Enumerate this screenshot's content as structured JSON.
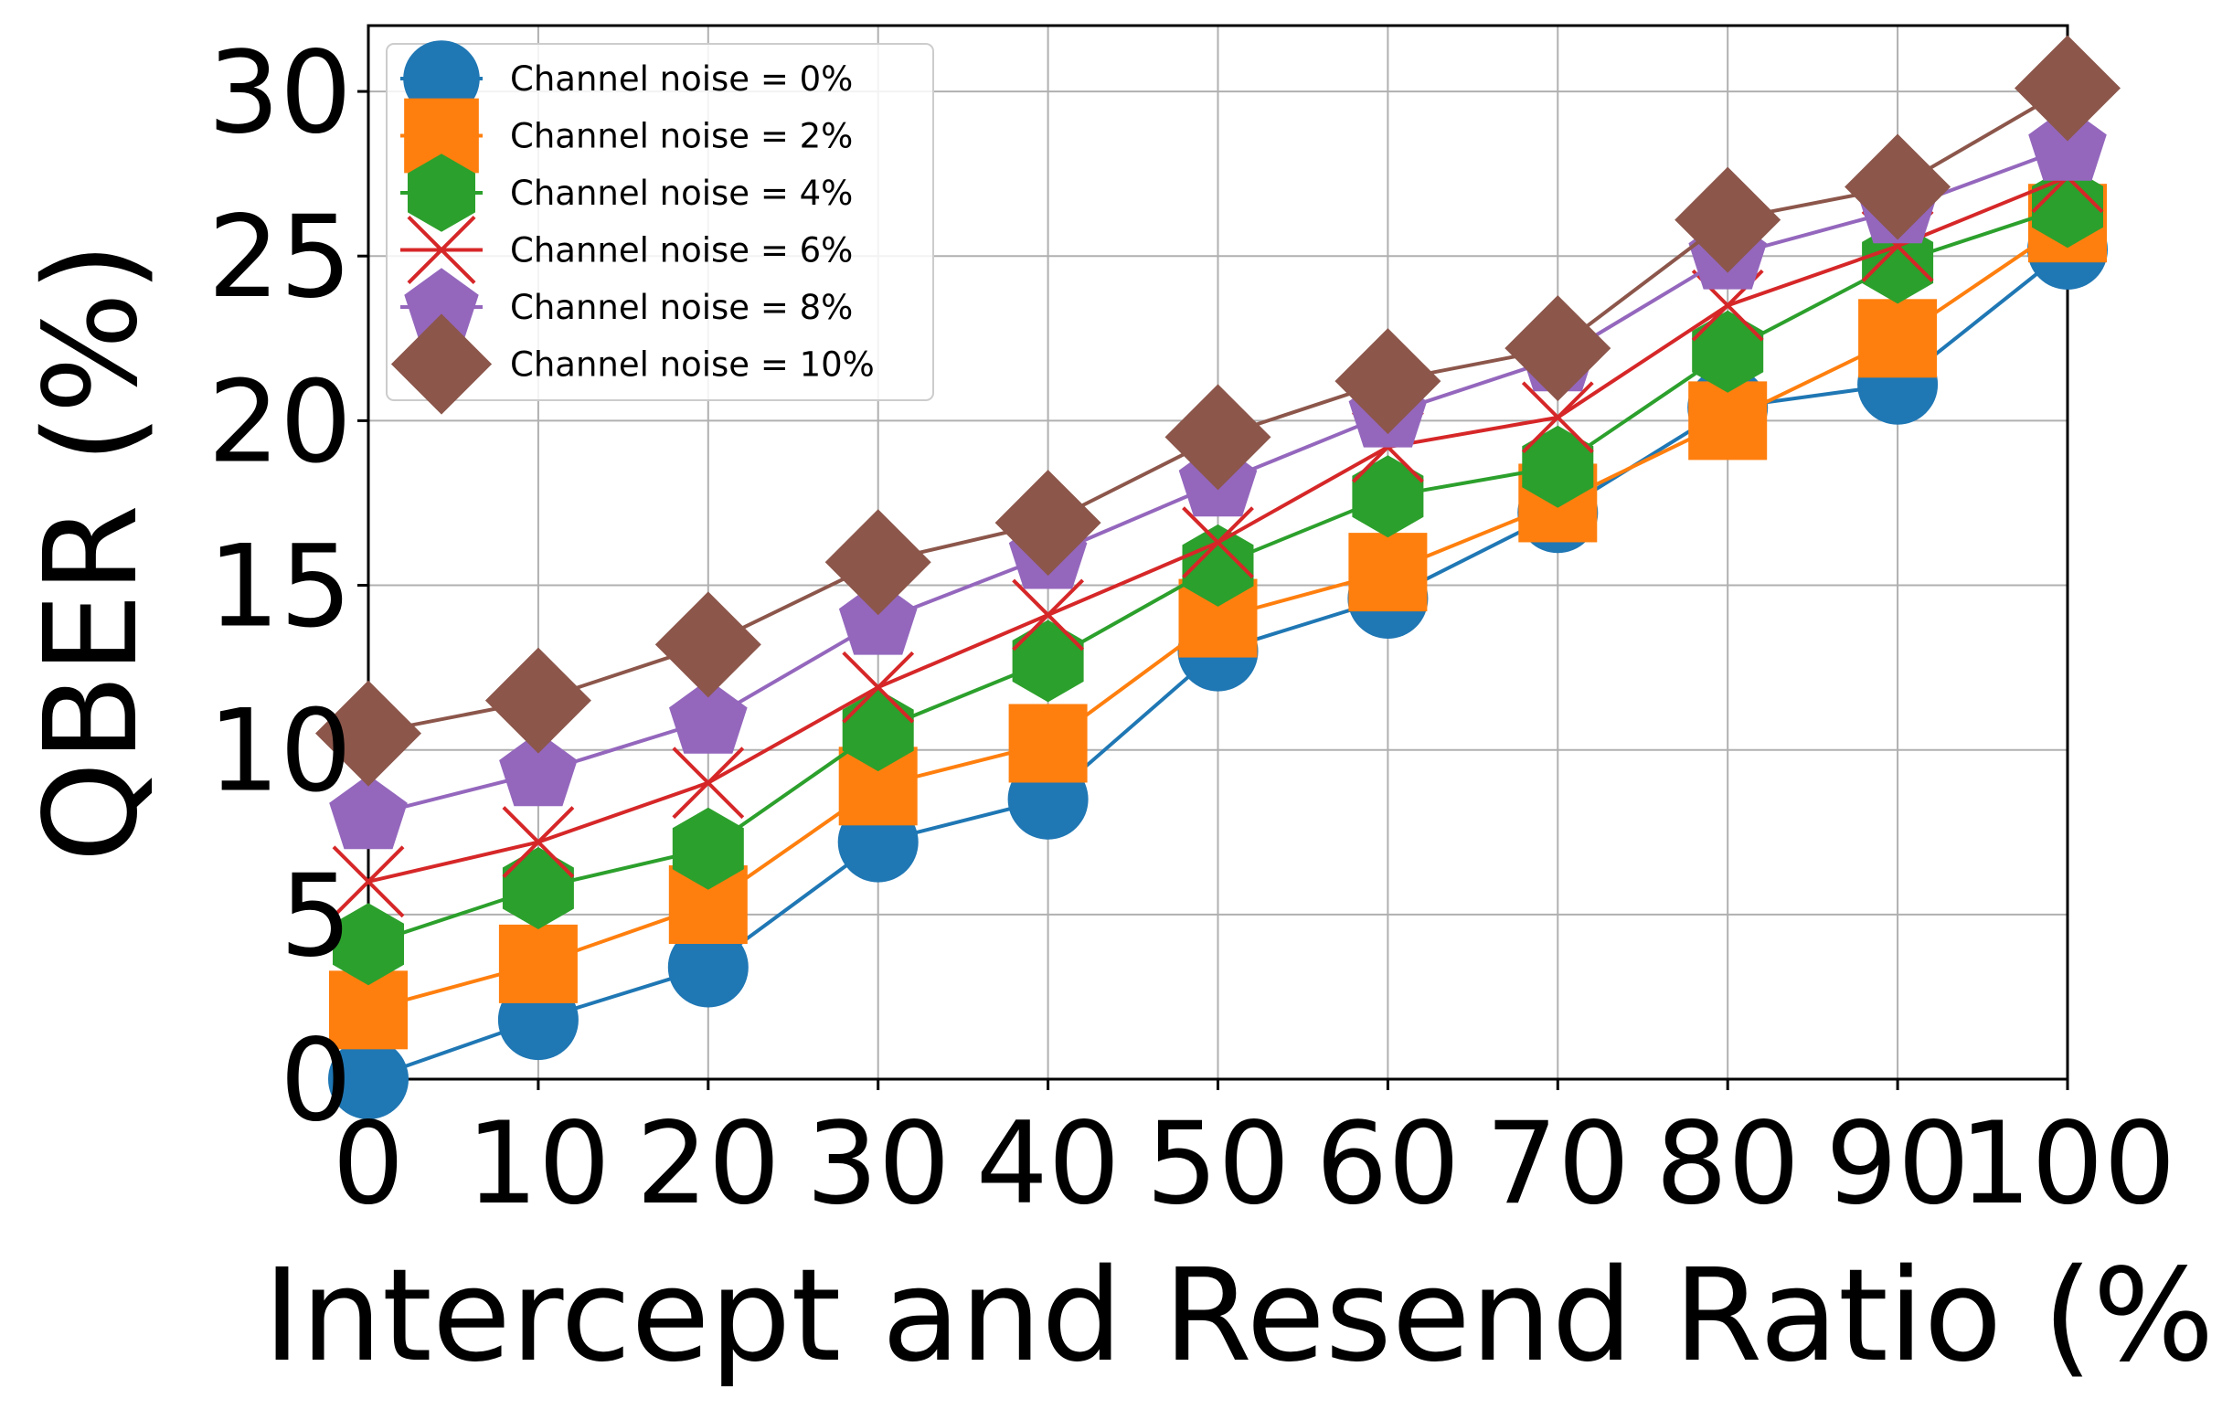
{
  "chart_data": {
    "type": "line",
    "title": "",
    "xlabel": "Intercept and Resend Ratio (%)",
    "ylabel": "QBER (%)",
    "x": [
      0,
      10,
      20,
      30,
      40,
      50,
      60,
      70,
      80,
      90,
      100
    ],
    "xlim": [
      0,
      100
    ],
    "ylim": [
      0,
      32
    ],
    "xticks": [
      0,
      10,
      20,
      30,
      40,
      50,
      60,
      70,
      80,
      90,
      100
    ],
    "yticks": [
      0,
      5,
      10,
      15,
      20,
      25,
      30
    ],
    "grid": true,
    "legend_position": "top-left",
    "series": [
      {
        "name": "Channel noise = 0%",
        "color": "#1f77b4",
        "marker": "circle",
        "values": [
          0,
          1.8,
          3.4,
          7.2,
          8.5,
          13.0,
          14.6,
          17.2,
          20.4,
          21.1,
          25.2
        ]
      },
      {
        "name": "Channel noise = 2%",
        "color": "#ff7f0e",
        "marker": "square",
        "values": [
          2.1,
          3.5,
          5.3,
          8.9,
          10.2,
          14.0,
          15.4,
          17.5,
          20.0,
          22.5,
          26.0
        ]
      },
      {
        "name": "Channel noise = 4%",
        "color": "#2ca02c",
        "marker": "hexagon",
        "values": [
          4.1,
          5.8,
          7.0,
          10.6,
          12.7,
          15.6,
          17.7,
          18.6,
          22.1,
          24.8,
          26.5
        ]
      },
      {
        "name": "Channel noise = 6%",
        "color": "#d62728",
        "marker": "x",
        "values": [
          6.0,
          7.2,
          9.0,
          11.9,
          14.1,
          16.3,
          19.2,
          20.1,
          23.5,
          25.3,
          27.4
        ]
      },
      {
        "name": "Channel noise = 8%",
        "color": "#9467bd",
        "marker": "pentagon",
        "values": [
          8.0,
          9.3,
          10.9,
          13.9,
          15.9,
          18.1,
          20.2,
          21.9,
          25.0,
          26.4,
          28.3
        ]
      },
      {
        "name": "Channel noise = 10%",
        "color": "#8c564b",
        "marker": "diamond",
        "values": [
          10.5,
          11.5,
          13.2,
          15.7,
          16.9,
          19.5,
          21.2,
          22.2,
          26.1,
          27.1,
          30.1
        ]
      }
    ]
  }
}
